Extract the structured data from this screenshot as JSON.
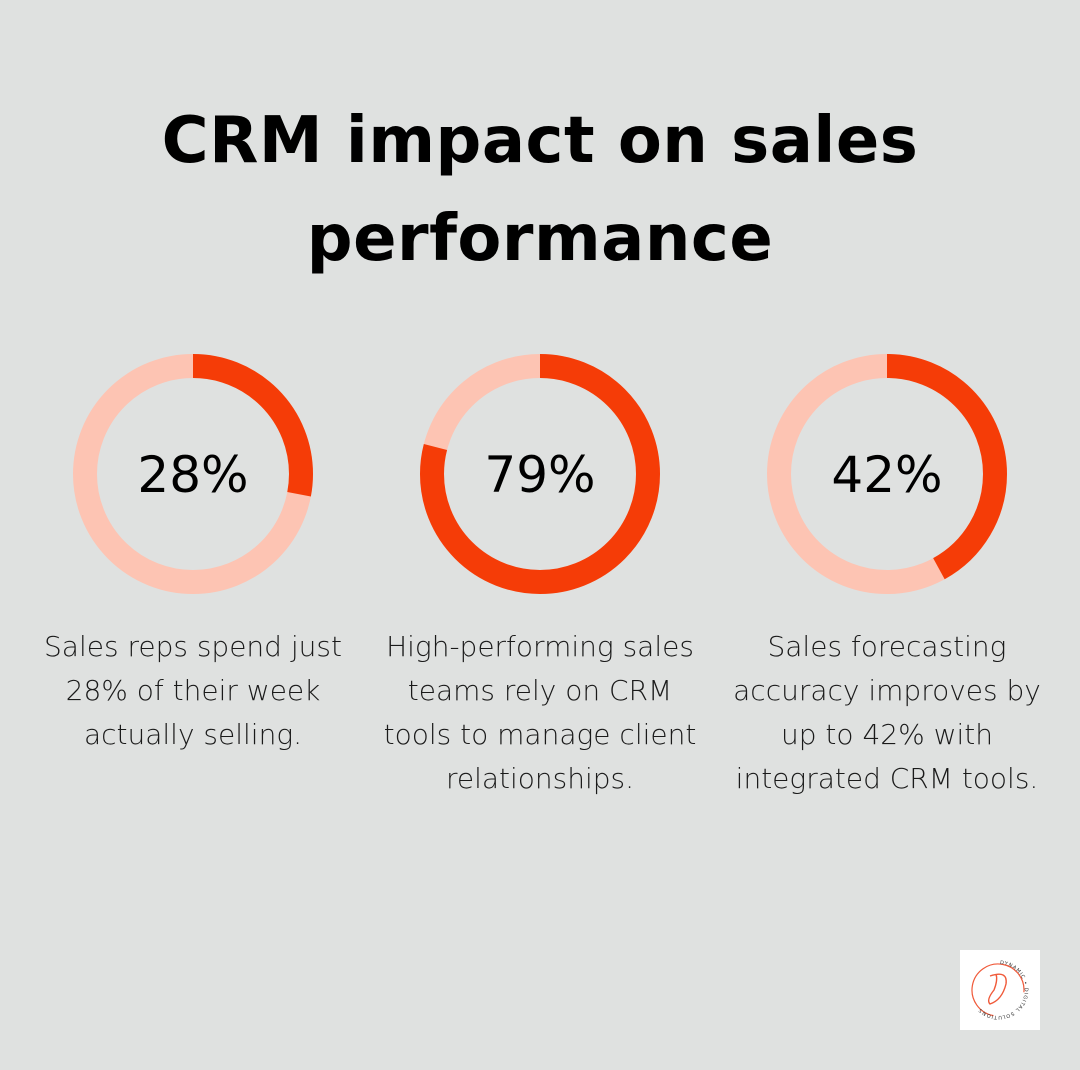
{
  "title": "CRM impact on sales performance",
  "colors": {
    "accent": "#f53c07",
    "track": "#fdc4b3",
    "background": "#dfe1e0"
  },
  "chart_data": {
    "type": "donut",
    "title": "CRM impact on sales performance",
    "items": [
      {
        "label": "28%",
        "value": 28,
        "description": "Sales reps spend just 28% of their week actually selling."
      },
      {
        "label": "79%",
        "value": 79,
        "description": "High-performing sales teams rely on CRM tools to manage client relationships."
      },
      {
        "label": "42%",
        "value": 42,
        "description": "Sales forecasting accuracy improves by up to 42% with integrated CRM tools."
      }
    ]
  },
  "logo": {
    "text": "DYNAMIC • DIGITAL SOLUTIONS"
  }
}
